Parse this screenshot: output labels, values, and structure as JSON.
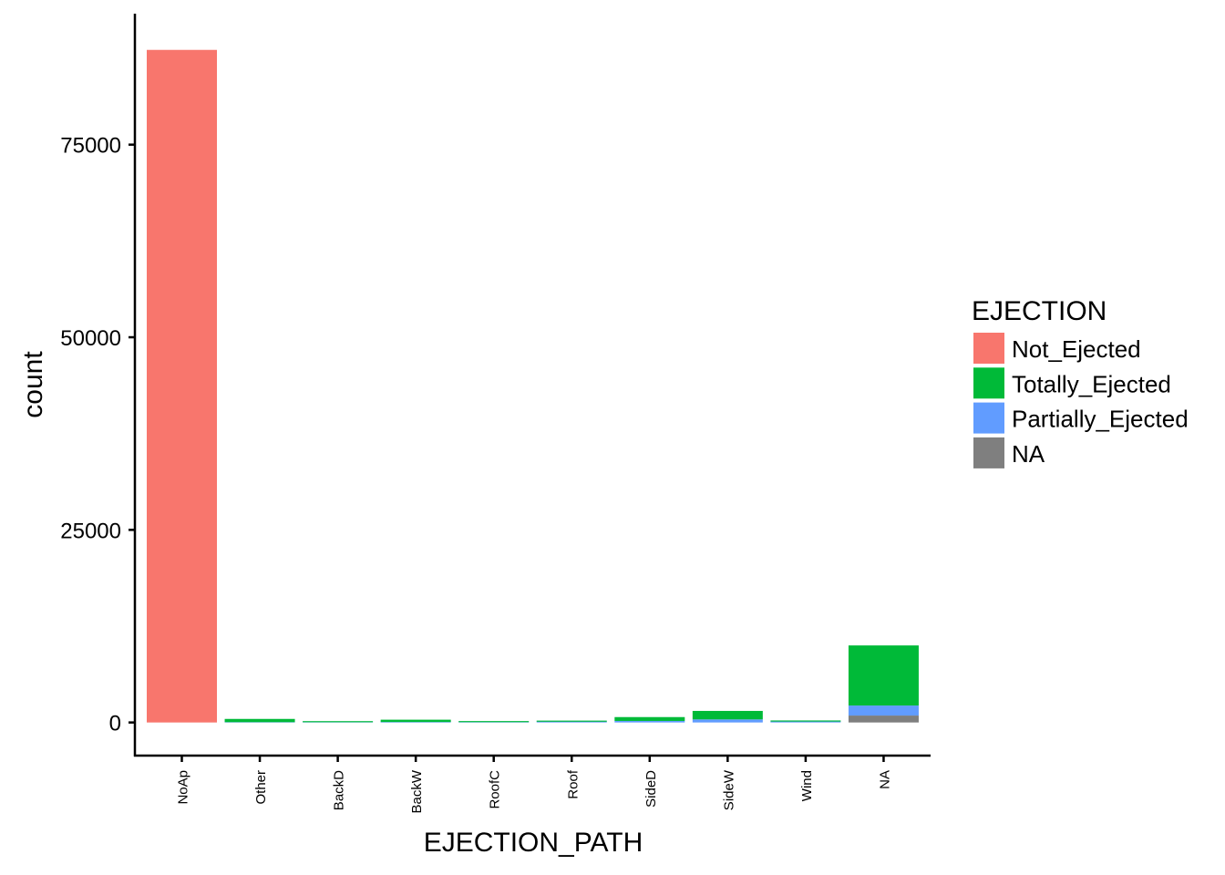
{
  "chart_data": {
    "type": "bar",
    "stacked": true,
    "categories": [
      "NoAp",
      "Other",
      "BackD",
      "BackW",
      "RoofC",
      "Roof",
      "SideD",
      "SideW",
      "Wind",
      "NA"
    ],
    "series": [
      {
        "name": "Not_Ejected",
        "color": "#F8766D",
        "values": [
          87300,
          0,
          0,
          0,
          0,
          0,
          0,
          0,
          0,
          0
        ]
      },
      {
        "name": "Totally_Ejected",
        "color": "#00BA38",
        "values": [
          0,
          420,
          80,
          300,
          60,
          120,
          500,
          1100,
          80,
          7800
        ]
      },
      {
        "name": "Partially_Ejected",
        "color": "#619CFF",
        "values": [
          0,
          40,
          30,
          60,
          40,
          100,
          200,
          400,
          120,
          1300
        ]
      },
      {
        "name": "NA",
        "color": "#7F7F7F",
        "values": [
          0,
          0,
          0,
          0,
          0,
          0,
          0,
          0,
          0,
          900
        ]
      }
    ],
    "xlabel": "EJECTION_PATH",
    "ylabel": "count",
    "yticks": [
      0,
      25000,
      50000,
      75000
    ],
    "ylim": [
      -4300,
      92000
    ],
    "legend": {
      "title": "EJECTION",
      "position": "right"
    },
    "grid": false
  }
}
